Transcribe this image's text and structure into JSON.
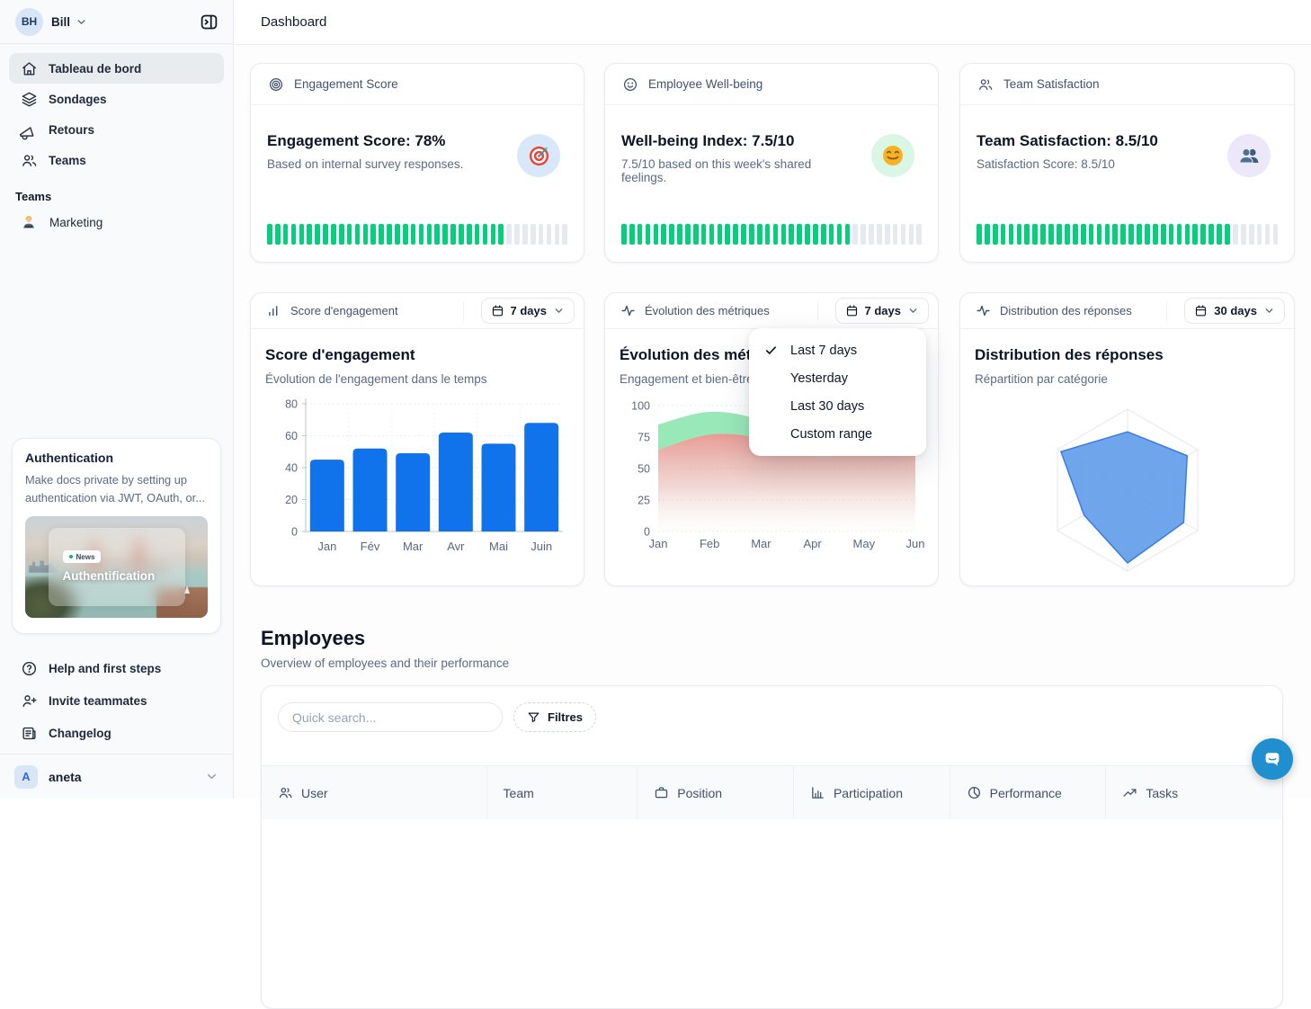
{
  "sidebar": {
    "user": {
      "initials": "BH",
      "name": "Bill"
    },
    "nav": [
      {
        "label": "Tableau de bord",
        "icon": "home-icon",
        "active": true
      },
      {
        "label": "Sondages",
        "icon": "layers-icon",
        "active": false
      },
      {
        "label": "Retours",
        "icon": "megaphone-icon",
        "active": false
      },
      {
        "label": "Teams",
        "icon": "users-icon",
        "active": false
      }
    ],
    "teams_section": {
      "label": "Teams",
      "items": [
        {
          "label": "Marketing",
          "icon": "technologist-emoji"
        }
      ]
    },
    "promo_card": {
      "title": "Authentication",
      "description": "Make docs private by setting up authentication via JWT, OAuth, or...",
      "image_badge": "News",
      "image_title": "Authentification"
    },
    "footer_nav": [
      {
        "label": "Help and first steps",
        "icon": "help-circle-icon"
      },
      {
        "label": "Invite teammates",
        "icon": "user-plus-icon"
      },
      {
        "label": "Changelog",
        "icon": "changelog-icon"
      }
    ],
    "workspace": {
      "initial": "A",
      "name": "aneta"
    }
  },
  "header": {
    "title": "Dashboard"
  },
  "stat_cards": [
    {
      "header": "Engagement Score",
      "title": "Engagement Score: 78%",
      "subtitle": "Based on internal survey responses.",
      "badge_icon": "target-emoji",
      "badge_bg": "#d9e8f8",
      "progress": {
        "segments": 38,
        "filled": 30,
        "value": "78%",
        "fill_color": "#04cf7d",
        "empty_color": "#e6e9ee"
      }
    },
    {
      "header": "Employee Well-being",
      "title": "Well-being Index: 7.5/10",
      "subtitle": "7.5/10 based on this week's shared feelings.",
      "badge_icon": "smiley-emoji",
      "badge_bg": "#d9f7e4",
      "progress": {
        "segments": 38,
        "filled": 29,
        "value": "7.5/10",
        "fill_color": "#04cf7d",
        "empty_color": "#e6e9ee"
      }
    },
    {
      "header": "Team Satisfaction",
      "title": "Team Satisfaction: 8.5/10",
      "subtitle": "Satisfaction Score: 8.5/10",
      "badge_icon": "people-emoji",
      "badge_bg": "#ece7f9",
      "progress": {
        "segments": 38,
        "filled": 32,
        "value": "8.5/10",
        "fill_color": "#04cf7d",
        "empty_color": "#e6e9ee"
      }
    }
  ],
  "chart_cards": [
    {
      "header": "Score d'engagement",
      "icon": "bar-chart-icon",
      "range_label": "7 days",
      "title": "Score d'engagement",
      "subtitle": "Évolution de l'engagement dans le temps"
    },
    {
      "header": "Évolution des métriques",
      "icon": "activity-icon",
      "range_label": "7 days",
      "title": "Évolution des métriques",
      "subtitle": "Engagement et bien-être"
    },
    {
      "header": "Distribution des réponses",
      "icon": "activity-icon",
      "range_label": "30 days",
      "title": "Distribution des réponses",
      "subtitle": "Répartition par catégorie"
    }
  ],
  "dropdown_menu": {
    "items": [
      {
        "label": "Last 7 days",
        "checked": true
      },
      {
        "label": "Yesterday",
        "checked": false
      },
      {
        "label": "Last 30 days",
        "checked": false
      },
      {
        "label": "Custom range",
        "checked": false
      }
    ]
  },
  "chart_data": [
    {
      "type": "bar",
      "title": "Score d'engagement",
      "categories": [
        "Jan",
        "Fév",
        "Mar",
        "Avr",
        "Mai",
        "Juin"
      ],
      "values": [
        45,
        52,
        49,
        62,
        55,
        68
      ],
      "ylim": [
        0,
        80
      ],
      "yticks": [
        0,
        20,
        40,
        60,
        80
      ],
      "bar_color": "#1173eb",
      "grid": "dotted"
    },
    {
      "type": "area",
      "title": "Évolution des métriques",
      "x": [
        "Jan",
        "Feb",
        "Mar",
        "Apr",
        "May",
        "Jun"
      ],
      "series": [
        {
          "name": "Engagement",
          "values": [
            85,
            95,
            88,
            65,
            72,
            80
          ],
          "color": "#92e7b4"
        },
        {
          "name": "Bien-être",
          "values": [
            65,
            77,
            74,
            60,
            63,
            68
          ],
          "color": "#e6938b"
        }
      ],
      "ylim": [
        0,
        100
      ],
      "yticks": [
        0,
        25,
        50,
        75,
        100
      ],
      "grid": "dotted"
    },
    {
      "type": "radar",
      "title": "Distribution des réponses",
      "axes": 6,
      "values": [
        72,
        85,
        80,
        90,
        62,
        95
      ],
      "max": 100,
      "fill": "rgba(86,150,232,0.85)",
      "stroke": "#3b7ce0",
      "rings": 3
    }
  ],
  "employees": {
    "title": "Employees",
    "subtitle": "Overview of employees and their performance",
    "search_placeholder": "Quick search...",
    "filter_label": "Filtres",
    "columns": [
      {
        "label": "User",
        "icon": "users-icon"
      },
      {
        "label": "Team",
        "icon": null
      },
      {
        "label": "Position",
        "icon": "briefcase-icon"
      },
      {
        "label": "Participation",
        "icon": "bar-chart-icon"
      },
      {
        "label": "Performance",
        "icon": "pie-chart-icon"
      },
      {
        "label": "Tasks",
        "icon": "trending-up-icon"
      }
    ]
  },
  "colors": {
    "progress_green": "#04cf7d",
    "bar_blue": "#1173eb",
    "radar_blue": "#3b7ce0",
    "intercom_blue": "#1f8fd0",
    "sidebar_bg": "#f9fafb"
  }
}
